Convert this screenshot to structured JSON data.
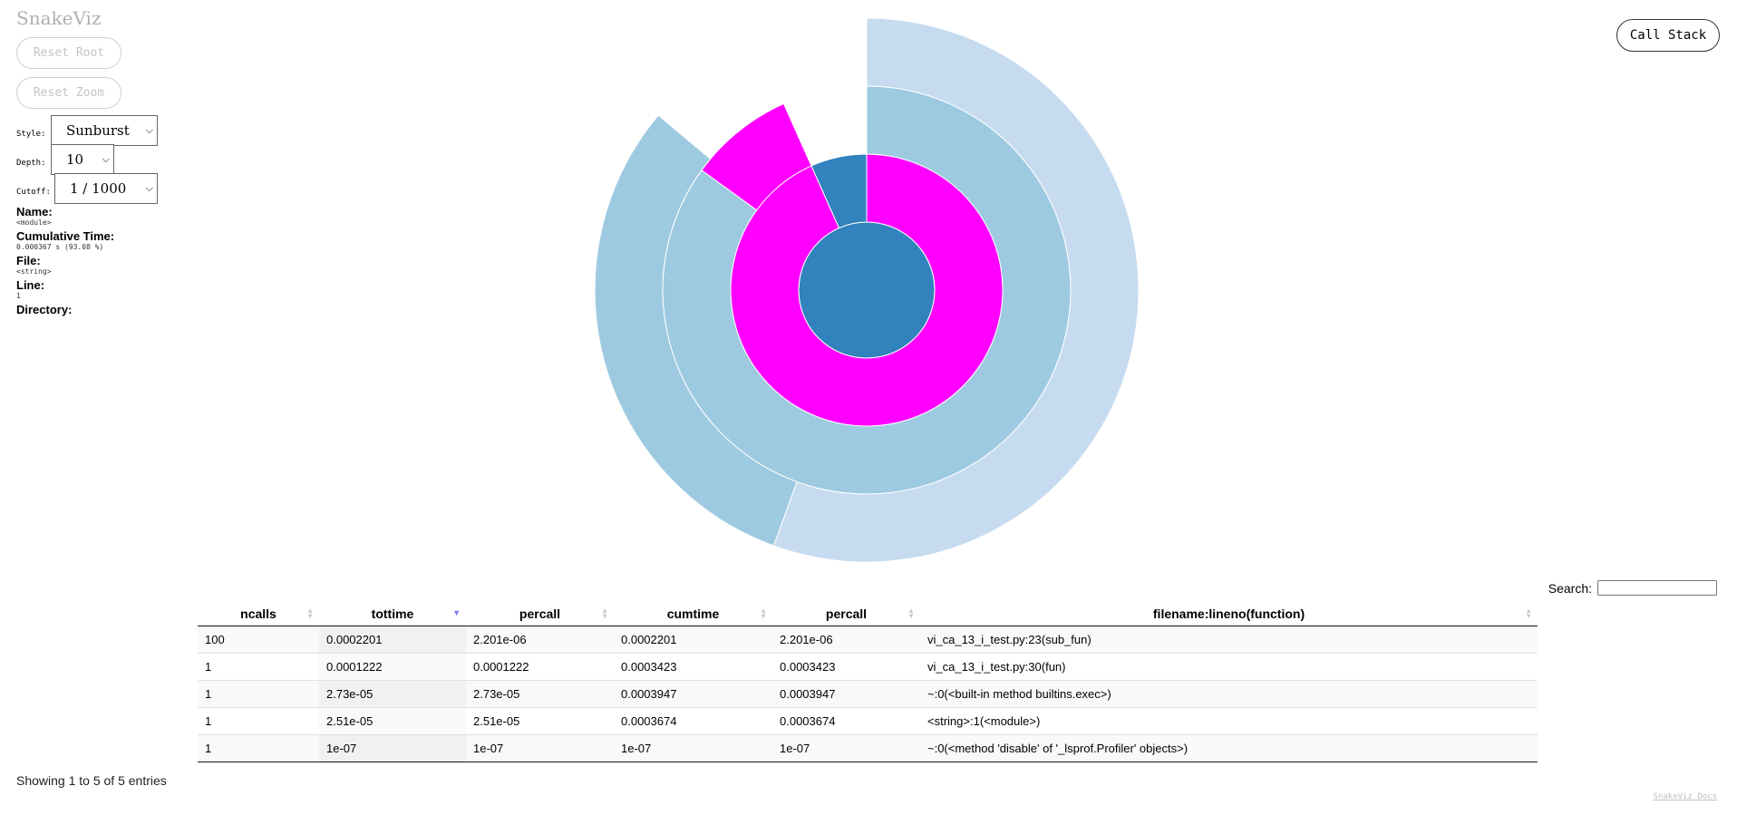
{
  "app": {
    "title": "SnakeViz"
  },
  "buttons": {
    "reset_root": "Reset Root",
    "reset_zoom": "Reset Zoom",
    "call_stack": "Call Stack"
  },
  "controls": {
    "style_label": "Style:",
    "style_value": "Sunburst",
    "depth_label": "Depth:",
    "depth_value": "10",
    "cutoff_label": "Cutoff:",
    "cutoff_value": "1 / 1000"
  },
  "info": {
    "name_label": "Name:",
    "name_value": "<module>",
    "cumtime_label": "Cumulative Time:",
    "cumtime_value": "0.000367 s (93.08 %)",
    "file_label": "File:",
    "file_value": "<string>",
    "line_label": "Line:",
    "line_value": "1",
    "directory_label": "Directory:",
    "directory_value": ""
  },
  "colors": {
    "core": "#3182bd",
    "magenta": "#ff00ff",
    "ring_light": "#9ecae1",
    "ring_lighter": "#c6dbef"
  },
  "sunburst": {
    "rings": [
      {
        "depth": 0,
        "arcs": [
          {
            "start": 0,
            "end": 360,
            "color": "#3182bd"
          }
        ]
      },
      {
        "depth": 1,
        "arcs": [
          {
            "start": 0,
            "end": 336,
            "color": "#ff00ff"
          },
          {
            "start": 336,
            "end": 360,
            "color": "#3182bd"
          }
        ]
      },
      {
        "depth": 2,
        "arcs": [
          {
            "start": 0,
            "end": 306,
            "color": "#9ecae1"
          },
          {
            "start": 306,
            "end": 336,
            "color": "#ff00ff"
          }
        ]
      },
      {
        "depth": 3,
        "arcs": [
          {
            "start": 0,
            "end": 200,
            "color": "#c6dbef"
          },
          {
            "start": 200,
            "end": 310,
            "color": "#9ecae1"
          }
        ]
      }
    ]
  },
  "search": {
    "label": "Search:"
  },
  "table": {
    "columns": [
      "ncalls",
      "tottime",
      "percall",
      "cumtime",
      "percall",
      "filename:lineno(function)"
    ],
    "rows": [
      [
        "100",
        "0.0002201",
        "2.201e-06",
        "0.0002201",
        "2.201e-06",
        "vi_ca_13_i_test.py:23(sub_fun)"
      ],
      [
        "1",
        "0.0001222",
        "0.0001222",
        "0.0003423",
        "0.0003423",
        "vi_ca_13_i_test.py:30(fun)"
      ],
      [
        "1",
        "2.73e-05",
        "2.73e-05",
        "0.0003947",
        "0.0003947",
        "~:0(<built-in method builtins.exec>)"
      ],
      [
        "1",
        "2.51e-05",
        "2.51e-05",
        "0.0003674",
        "0.0003674",
        "<string>:1(<module>)"
      ],
      [
        "1",
        "1e-07",
        "1e-07",
        "1e-07",
        "1e-07",
        "~:0(<method 'disable' of '_lsprof.Profiler' objects>)"
      ]
    ],
    "entries_text": "Showing 1 to 5 of 5 entries"
  },
  "footer": {
    "docs_link": "SnakeViz Docs"
  }
}
